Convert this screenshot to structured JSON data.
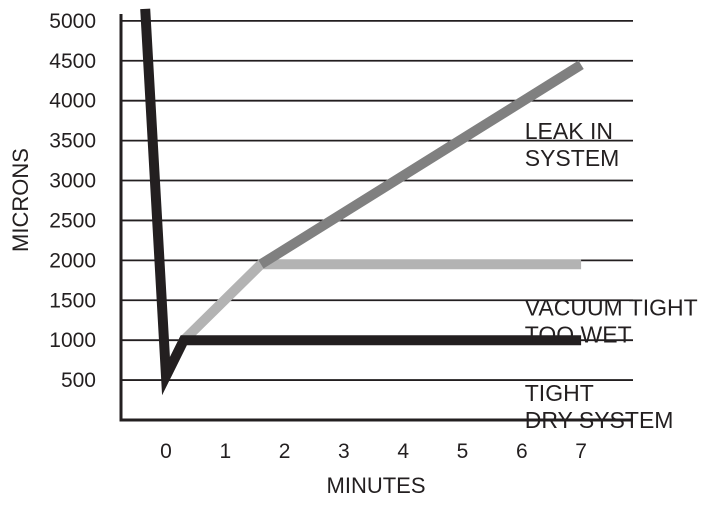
{
  "chart_data": {
    "type": "line",
    "title": "",
    "xlabel": "MINUTES",
    "ylabel": "MICRONS",
    "xlim": [
      -0.75,
      7.75
    ],
    "ylim": [
      0,
      5000
    ],
    "x_ticks": [
      "0",
      "1",
      "2",
      "3",
      "4",
      "5",
      "6",
      "7"
    ],
    "y_ticks": [
      "500",
      "1000",
      "1500",
      "2000",
      "2500",
      "3000",
      "3500",
      "4000",
      "4500",
      "5000"
    ],
    "grid": "horizontal",
    "series": [
      {
        "color": "#231f20",
        "points": [
          [
            -0.35,
            5150
          ],
          [
            0.0,
            550
          ],
          [
            0.3,
            1000
          ],
          [
            7.0,
            1000
          ]
        ]
      },
      {
        "color": "#b3b3b3",
        "points": [
          [
            0.0,
            550
          ],
          [
            0.3,
            1000
          ],
          [
            1.6,
            1950
          ],
          [
            7.0,
            1950
          ]
        ]
      },
      {
        "color": "#808080",
        "points": [
          [
            1.6,
            1950
          ],
          [
            7.0,
            4450
          ]
        ]
      }
    ],
    "annotations": [
      {
        "lines": [
          "LEAK IN",
          "SYSTEM"
        ],
        "x": 6.05,
        "y": 3520
      },
      {
        "lines": [
          "VACUUM TIGHT",
          "TOO WET"
        ],
        "x": 6.05,
        "y": 1310
      },
      {
        "lines": [
          "TIGHT",
          "DRY SYSTEM"
        ],
        "x": 6.05,
        "y": 235
      }
    ]
  }
}
